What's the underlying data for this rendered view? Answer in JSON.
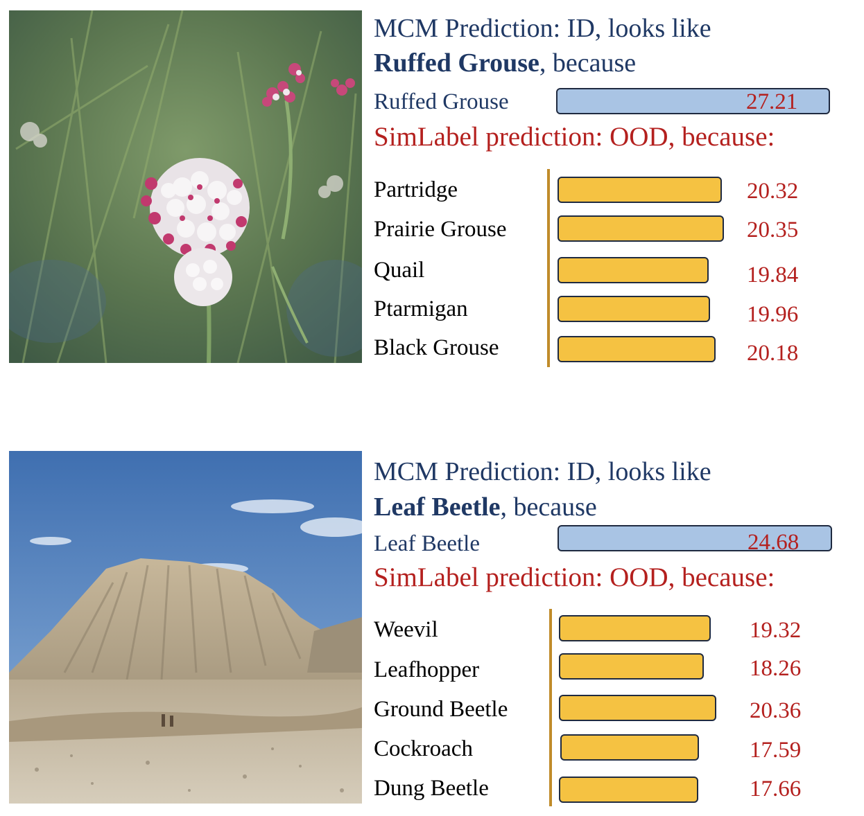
{
  "colors": {
    "mcm_text": "#1f3864",
    "simlabel_text": "#b4201e",
    "top_bar_fill": "#a9c4e4",
    "row_bar_fill": "#f5c242",
    "axis_line": "#c08b2a"
  },
  "panels": [
    {
      "image_subject": "pink and white wildflower cluster",
      "mcm_prefix": "MCM Prediction: ID, looks like",
      "mcm_class": "Ruffed Grouse",
      "mcm_suffix": ", because",
      "top_label": "Ruffed Grouse",
      "top_value": "27.21",
      "simlabel_text": "SimLabel prediction: OOD, because:",
      "rows": [
        {
          "label": "Partridge",
          "value": "20.32"
        },
        {
          "label": "Prairie Grouse",
          "value": "20.35"
        },
        {
          "label": "Quail",
          "value": "19.84"
        },
        {
          "label": "Ptarmigan",
          "value": "19.96"
        },
        {
          "label": "Black Grouse",
          "value": "20.18"
        }
      ]
    },
    {
      "image_subject": "desert mountain under blue sky",
      "mcm_prefix": "MCM Prediction: ID, looks like",
      "mcm_class": "Leaf Beetle",
      "mcm_suffix": ", because",
      "top_label": "Leaf Beetle",
      "top_value": "24.68",
      "simlabel_text": "SimLabel prediction: OOD, because:",
      "rows": [
        {
          "label": "Weevil",
          "value": "19.32"
        },
        {
          "label": "Leafhopper",
          "value": "18.26"
        },
        {
          "label": "Ground Beetle",
          "value": "20.36"
        },
        {
          "label": "Cockroach",
          "value": "17.59"
        },
        {
          "label": "Dung Beetle",
          "value": "17.66"
        }
      ]
    }
  ]
}
